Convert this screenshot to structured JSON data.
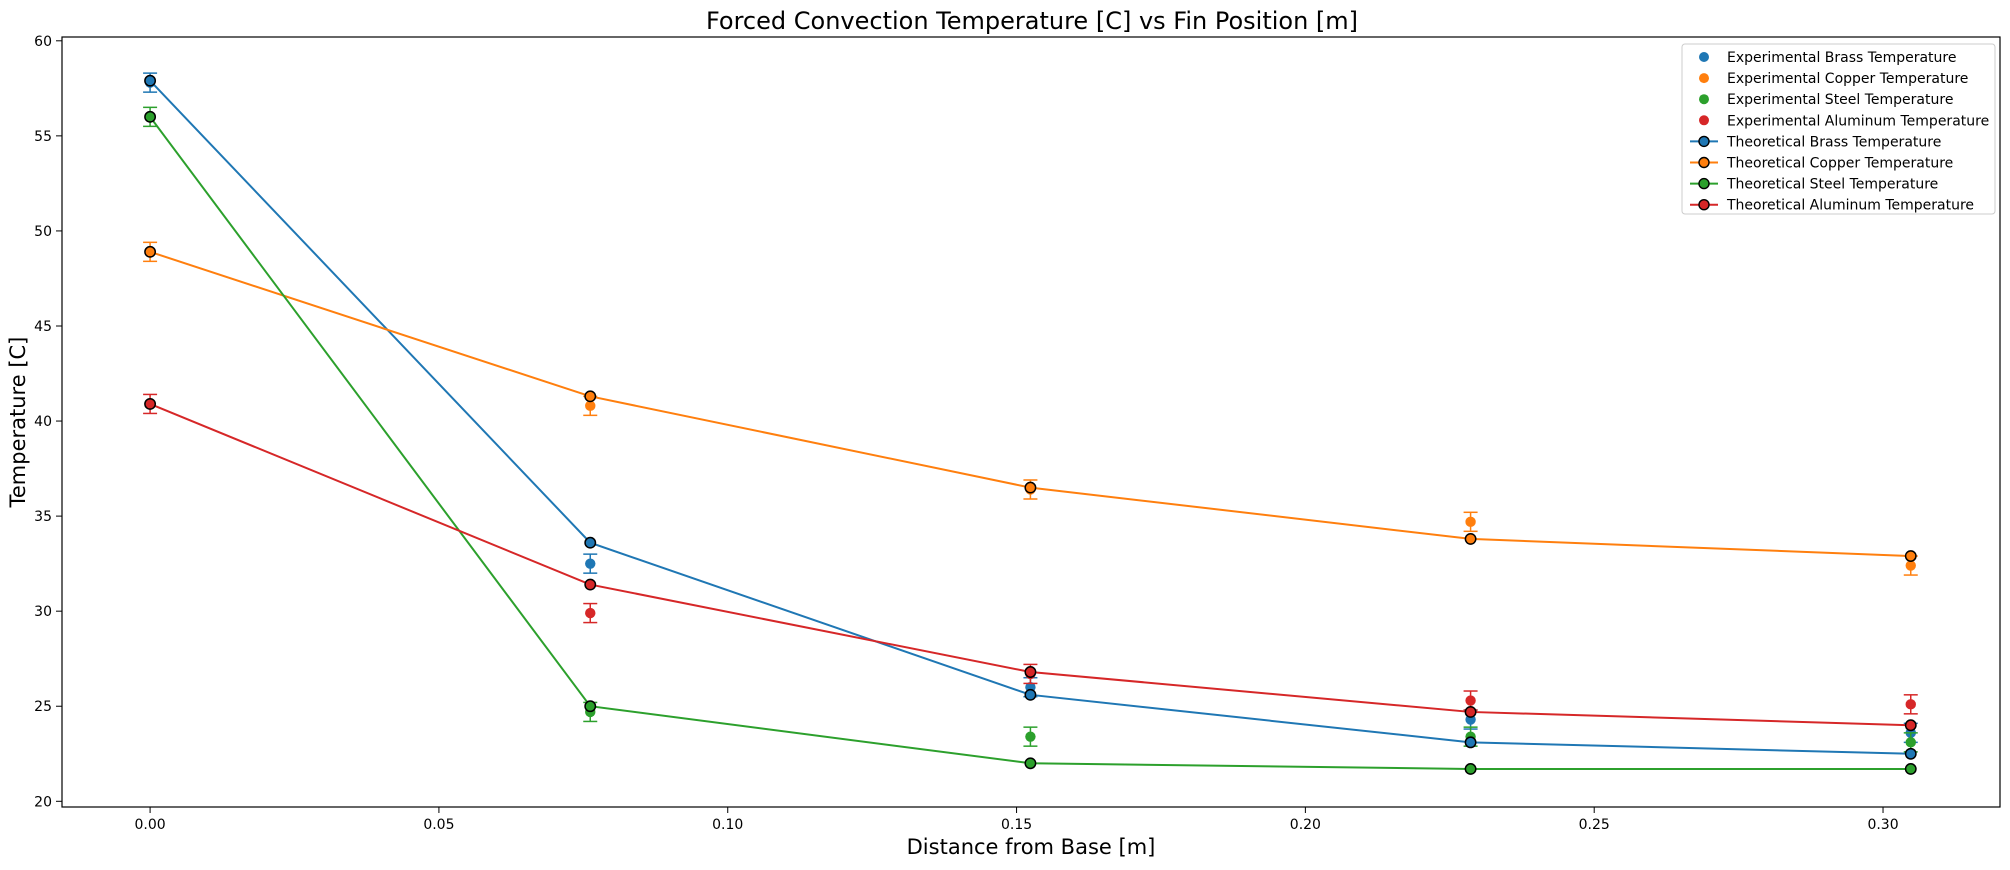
{
  "chart_data": {
    "type": "line",
    "title": "Forced Convection Temperature [C] vs Fin Position [m]",
    "xlabel": "Distance from Base [m]",
    "ylabel": "Temperature [C]",
    "xlim": [
      -0.01525,
      0.32025
    ],
    "ylim": [
      19.7,
      60.2
    ],
    "x_ticks": [
      {
        "value": 0.0,
        "label": "0.00"
      },
      {
        "value": 0.05,
        "label": "0.05"
      },
      {
        "value": 0.1,
        "label": "0.10"
      },
      {
        "value": 0.15,
        "label": "0.15"
      },
      {
        "value": 0.2,
        "label": "0.20"
      },
      {
        "value": 0.25,
        "label": "0.25"
      },
      {
        "value": 0.3,
        "label": "0.30"
      }
    ],
    "y_ticks": [
      {
        "value": 20,
        "label": "20"
      },
      {
        "value": 25,
        "label": "25"
      },
      {
        "value": 30,
        "label": "30"
      },
      {
        "value": 35,
        "label": "35"
      },
      {
        "value": 40,
        "label": "40"
      },
      {
        "value": 45,
        "label": "45"
      },
      {
        "value": 50,
        "label": "50"
      },
      {
        "value": 55,
        "label": "55"
      },
      {
        "value": 60,
        "label": "60"
      }
    ],
    "grid": false,
    "legend_position": "top-right",
    "x": [
      0.0,
      0.0762,
      0.1524,
      0.2286,
      0.3048
    ],
    "series": [
      {
        "key": "brass",
        "experimental_name": "Experimental Brass Temperature",
        "theoretical_name": "Theoretical Brass Temperature",
        "color": "#1f77b4",
        "experimental": [
          57.8,
          32.5,
          26.0,
          24.3,
          23.6
        ],
        "error": [
          0.5,
          0.5,
          0.5,
          0.5,
          0.5
        ],
        "theoretical": [
          57.9,
          33.6,
          25.6,
          23.1,
          22.5
        ]
      },
      {
        "key": "copper",
        "experimental_name": "Experimental Copper Temperature",
        "theoretical_name": "Theoretical Copper Temperature",
        "color": "#ff7f0e",
        "experimental": [
          48.9,
          40.8,
          36.4,
          34.7,
          32.4
        ],
        "error": [
          0.5,
          0.5,
          0.5,
          0.5,
          0.5
        ],
        "theoretical": [
          48.9,
          41.3,
          36.5,
          33.8,
          32.9
        ]
      },
      {
        "key": "steel",
        "experimental_name": "Experimental Steel Temperature",
        "theoretical_name": "Theoretical Steel Temperature",
        "color": "#2ca02c",
        "experimental": [
          56.0,
          24.7,
          23.4,
          23.4,
          23.1
        ],
        "error": [
          0.5,
          0.5,
          0.5,
          0.5,
          0.5
        ],
        "theoretical": [
          56.0,
          25.0,
          22.0,
          21.7,
          21.7
        ]
      },
      {
        "key": "aluminum",
        "experimental_name": "Experimental Aluminum Temperature",
        "theoretical_name": "Theoretical Aluminum Temperature",
        "color": "#d62728",
        "experimental": [
          40.9,
          29.9,
          26.7,
          25.3,
          25.1
        ],
        "error": [
          0.5,
          0.5,
          0.5,
          0.5,
          0.5
        ],
        "theoretical": [
          40.9,
          31.4,
          26.8,
          24.7,
          24.0
        ]
      }
    ]
  }
}
